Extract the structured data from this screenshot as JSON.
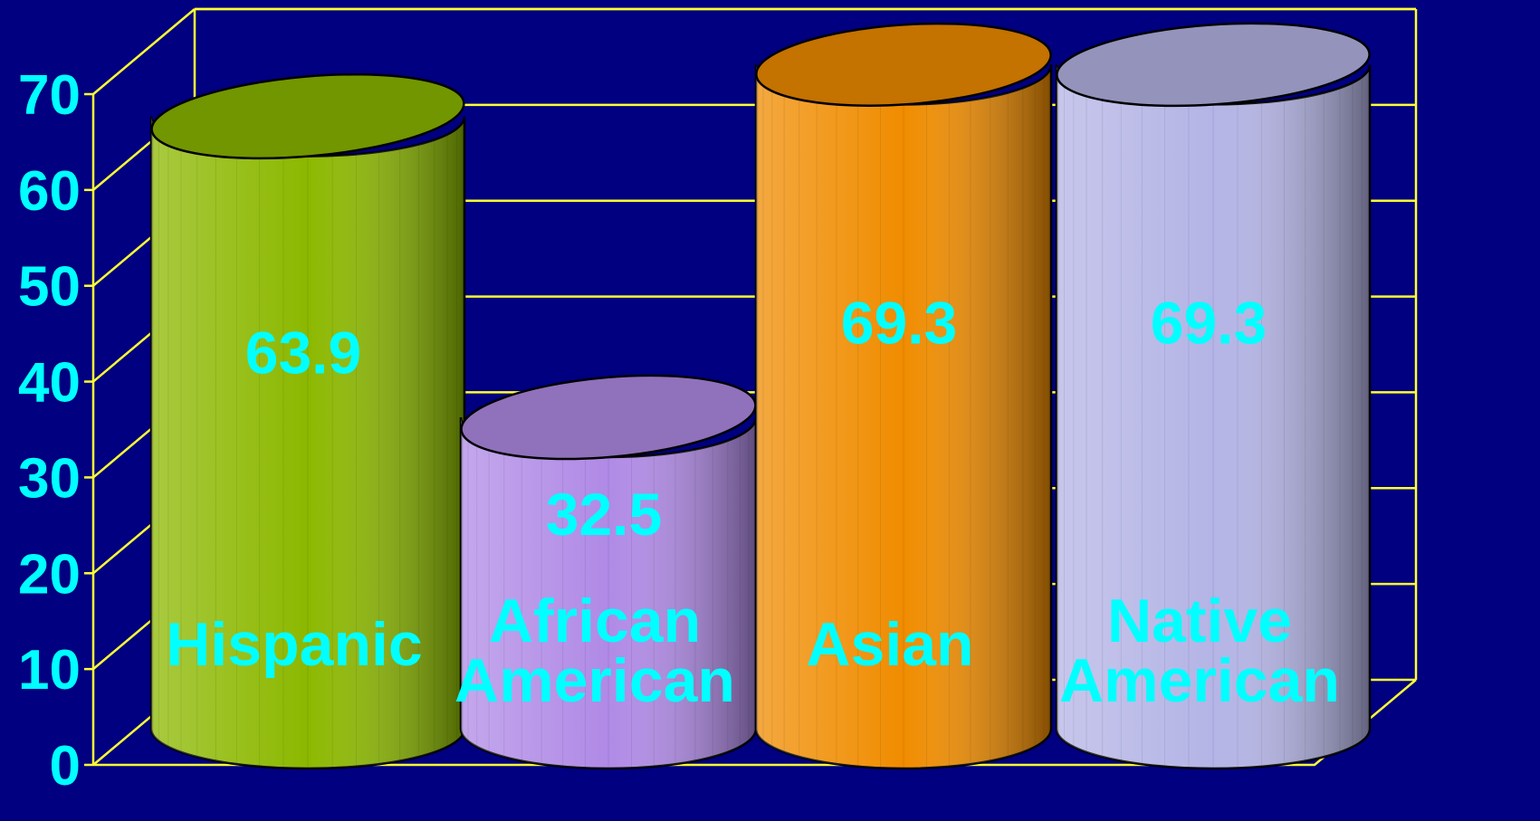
{
  "chart_data": {
    "type": "bar",
    "title": "",
    "xlabel": "",
    "ylabel": "",
    "ylim": [
      0,
      70
    ],
    "yticks": [
      0,
      10,
      20,
      30,
      40,
      50,
      60,
      70
    ],
    "categories": [
      "Hispanic",
      "African American",
      "Asian",
      "Native American"
    ],
    "category_lines": [
      [
        "Hispanic"
      ],
      [
        "African",
        "American"
      ],
      [
        "Asian"
      ],
      [
        "Native",
        "American"
      ]
    ],
    "values": [
      63.9,
      32.5,
      69.3,
      69.3
    ],
    "value_labels": [
      "63.9",
      "32.5",
      "69.3",
      "69.3"
    ],
    "grid": true,
    "legend": "none",
    "style": "3d-cylinder"
  },
  "colors": {
    "background": "#000080",
    "grid": "#FFFF33",
    "label_text": "#00FFFF",
    "bars": [
      "#8CB800",
      "#B08AE6",
      "#F08C00",
      "#B4B4E6"
    ]
  }
}
